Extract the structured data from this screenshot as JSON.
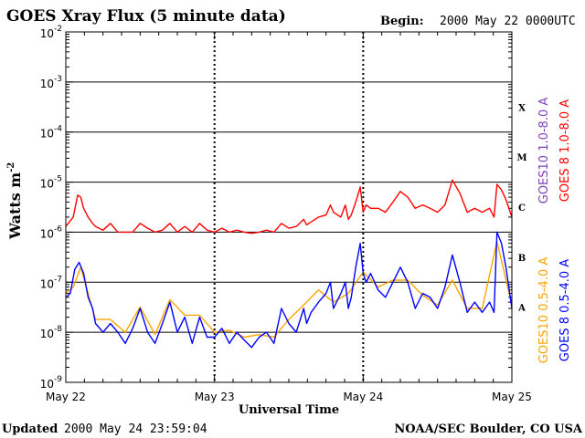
{
  "header": {
    "title": "GOES Xray Flux (5 minute data)",
    "begin_label": "Begin:",
    "begin_value": "2000 May 22 0000UTC"
  },
  "footer": {
    "updated_label": "Updated",
    "updated_value": "2000 May 24 23:59:04",
    "source": "NOAA/SEC Boulder, CO USA"
  },
  "chart_data": {
    "type": "line",
    "title": "GOES Xray Flux (5 minute data)",
    "xlabel": "Universal Time",
    "ylabel": "Watts m",
    "ylabel_sup": "-2",
    "yscale": "log",
    "ylim": [
      1e-09,
      0.01
    ],
    "xlim_days": [
      0,
      3
    ],
    "x_ticks": [
      "May 22",
      "May 23",
      "May 24",
      "May 25"
    ],
    "y_ticks": [
      {
        "base": "10",
        "exp": "-2"
      },
      {
        "base": "10",
        "exp": "-3"
      },
      {
        "base": "10",
        "exp": "-4"
      },
      {
        "base": "10",
        "exp": "-5"
      },
      {
        "base": "10",
        "exp": "-6"
      },
      {
        "base": "10",
        "exp": "-7"
      },
      {
        "base": "10",
        "exp": "-8"
      },
      {
        "base": "10",
        "exp": "-9"
      }
    ],
    "flare_classes": [
      "X",
      "M",
      "C",
      "B",
      "A"
    ],
    "grid": true,
    "legend_position": "right",
    "colors": {
      "goes8_long": "#ff0000",
      "goes10_long": "#7f3fbf",
      "goes8_short": "#0000ff",
      "goes10_short": "#ffa500"
    },
    "series": [
      {
        "name": "GOES 8 1.0-8.0 A",
        "color": "#ff0000",
        "x": [
          0.0,
          0.05,
          0.08,
          0.1,
          0.12,
          0.15,
          0.18,
          0.2,
          0.25,
          0.3,
          0.35,
          0.4,
          0.45,
          0.5,
          0.55,
          0.6,
          0.65,
          0.7,
          0.75,
          0.8,
          0.85,
          0.9,
          0.95,
          1.0,
          1.05,
          1.1,
          1.15,
          1.2,
          1.25,
          1.3,
          1.35,
          1.4,
          1.45,
          1.5,
          1.55,
          1.6,
          1.62,
          1.65,
          1.7,
          1.75,
          1.78,
          1.8,
          1.85,
          1.88,
          1.9,
          1.92,
          1.95,
          1.98,
          2.0,
          2.02,
          2.05,
          2.1,
          2.15,
          2.2,
          2.25,
          2.3,
          2.35,
          2.4,
          2.45,
          2.5,
          2.55,
          2.6,
          2.65,
          2.7,
          2.75,
          2.8,
          2.85,
          2.88,
          2.9,
          2.93,
          2.96,
          3.0
        ],
        "y": [
          1.3e-06,
          2e-06,
          5.5e-06,
          5e-06,
          3e-06,
          2e-06,
          1.5e-06,
          1.3e-06,
          1.1e-06,
          1.5e-06,
          1e-06,
          1e-06,
          1e-06,
          1.5e-06,
          1.2e-06,
          1e-06,
          1.1e-06,
          1.5e-06,
          1e-06,
          1.3e-06,
          1e-06,
          1.5e-06,
          1.1e-06,
          1e-06,
          1.2e-06,
          1e-06,
          1.1e-06,
          1e-06,
          9.5e-07,
          1e-06,
          1.1e-06,
          1e-06,
          1.5e-06,
          1.2e-06,
          1.3e-06,
          1.8e-06,
          1.4e-06,
          1.6e-06,
          2e-06,
          2.2e-06,
          3.5e-06,
          2.5e-06,
          2e-06,
          3.5e-06,
          1.8e-06,
          2.2e-06,
          4e-06,
          8e-06,
          2.5e-06,
          3.5e-06,
          3e-06,
          3e-06,
          2.5e-06,
          4e-06,
          6.5e-06,
          5e-06,
          3e-06,
          3.5e-06,
          3e-06,
          2.5e-06,
          3.5e-06,
          1.1e-05,
          6e-06,
          2.5e-06,
          3e-06,
          2.5e-06,
          3e-06,
          2e-06,
          9e-06,
          7e-06,
          4.5e-06,
          2e-06
        ]
      },
      {
        "name": "GOES10 1.0-8.0 A",
        "color": "#7f3fbf",
        "x": [],
        "y": []
      },
      {
        "name": "GOES 8 0.5-4.0 A",
        "color": "#0000ff",
        "x": [
          0.0,
          0.03,
          0.06,
          0.09,
          0.12,
          0.15,
          0.18,
          0.2,
          0.25,
          0.3,
          0.35,
          0.4,
          0.45,
          0.5,
          0.55,
          0.6,
          0.65,
          0.7,
          0.75,
          0.8,
          0.85,
          0.9,
          0.95,
          1.0,
          1.05,
          1.1,
          1.15,
          1.2,
          1.25,
          1.3,
          1.35,
          1.4,
          1.45,
          1.5,
          1.55,
          1.6,
          1.62,
          1.65,
          1.7,
          1.75,
          1.78,
          1.8,
          1.85,
          1.88,
          1.9,
          1.92,
          1.95,
          1.98,
          2.0,
          2.02,
          2.05,
          2.1,
          2.15,
          2.2,
          2.25,
          2.3,
          2.35,
          2.4,
          2.45,
          2.5,
          2.55,
          2.6,
          2.65,
          2.7,
          2.75,
          2.8,
          2.85,
          2.88,
          2.9,
          2.93,
          2.96,
          3.0
        ],
        "y": [
          5e-08,
          6e-08,
          1.8e-07,
          2.5e-07,
          1.5e-07,
          5e-08,
          3e-08,
          1.5e-08,
          1e-08,
          1.5e-08,
          1e-08,
          6e-09,
          1.2e-08,
          3e-08,
          1e-08,
          6e-09,
          1.5e-08,
          4e-08,
          1e-08,
          2e-08,
          6e-09,
          2e-08,
          8e-09,
          8e-09,
          1.2e-08,
          6e-09,
          1e-08,
          7e-09,
          5e-09,
          8e-09,
          1e-08,
          6e-09,
          3e-08,
          1.5e-08,
          1e-08,
          3e-08,
          1.5e-08,
          2.5e-08,
          4e-08,
          6e-08,
          1e-07,
          3e-08,
          6e-08,
          1e-07,
          3e-08,
          5e-08,
          2e-07,
          6e-07,
          1.5e-07,
          1e-07,
          1.5e-07,
          7e-08,
          5e-08,
          1e-07,
          2e-07,
          1e-07,
          3e-08,
          6e-08,
          5e-08,
          3e-08,
          8e-08,
          3.5e-07,
          1e-07,
          2.5e-08,
          4e-08,
          2.5e-08,
          4e-08,
          2.5e-08,
          1e-06,
          6e-07,
          2e-07,
          3e-08
        ]
      },
      {
        "name": "GOES10 0.5-4.0 A",
        "color": "#ffa500",
        "x": [
          0.0,
          0.05,
          0.1,
          0.2,
          0.3,
          0.4,
          0.5,
          0.6,
          0.7,
          0.8,
          0.9,
          1.0,
          1.1,
          1.2,
          1.3,
          1.4,
          1.5,
          1.6,
          1.7,
          1.8,
          1.9,
          2.0,
          2.1,
          2.2,
          2.3,
          2.4,
          2.5,
          2.6,
          2.7,
          2.8,
          2.9,
          3.0
        ],
        "y": [
          6e-08,
          8e-08,
          2e-07,
          1.8e-08,
          1.8e-08,
          1e-08,
          3.2e-08,
          9e-09,
          4.5e-08,
          2.2e-08,
          2.2e-08,
          1e-08,
          1.1e-08,
          8e-09,
          9e-09,
          8e-09,
          1.8e-08,
          3.5e-08,
          7e-08,
          4e-08,
          6e-08,
          1.6e-07,
          8e-08,
          1.1e-07,
          1.1e-07,
          5.5e-08,
          3.5e-08,
          1.1e-07,
          3e-08,
          3e-08,
          6.5e-07,
          3.5e-08
        ]
      }
    ]
  }
}
